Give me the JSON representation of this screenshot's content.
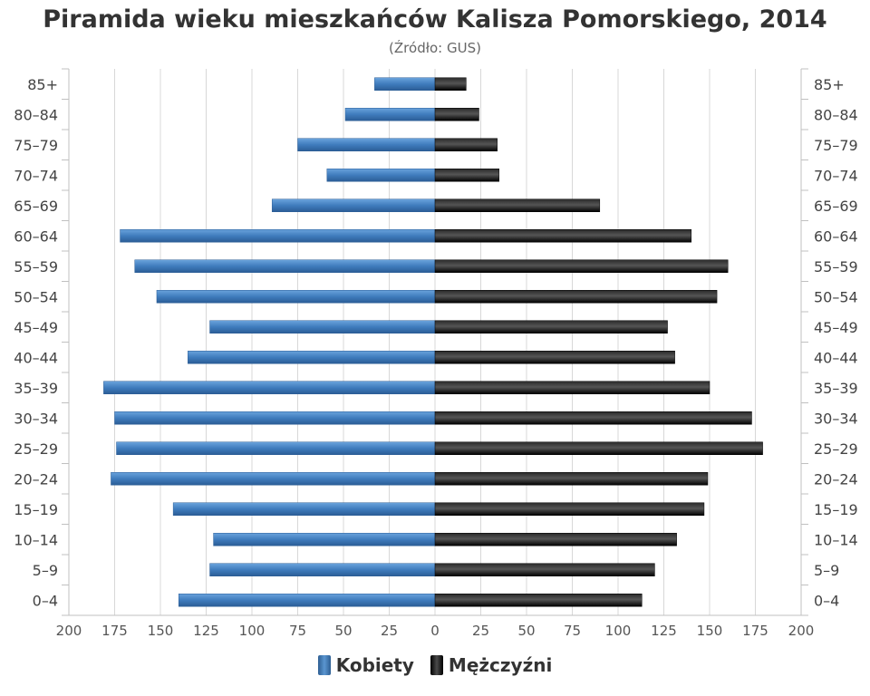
{
  "chart_data": {
    "type": "bar",
    "orientation": "horizontal-pyramid",
    "title": "Piramida wieku mieszkańców Kalisza Pomorskiego, 2014",
    "subtitle": "(Źródło: GUS)",
    "categories": [
      "85+",
      "80–84",
      "75–79",
      "70–74",
      "65–69",
      "60–64",
      "55–59",
      "50–54",
      "45–49",
      "40–44",
      "35–39",
      "30–34",
      "25–29",
      "20–24",
      "15–19",
      "10–14",
      "5–9",
      "0–4"
    ],
    "series": [
      {
        "name": "Kobiety",
        "color": "#4a86c5",
        "values": [
          33,
          49,
          75,
          59,
          89,
          172,
          164,
          152,
          123,
          135,
          181,
          175,
          174,
          177,
          143,
          121,
          123,
          140
        ]
      },
      {
        "name": "Mężczyźni",
        "color": "#1a1a1a",
        "values": [
          17,
          24,
          34,
          35,
          90,
          140,
          160,
          154,
          127,
          131,
          150,
          173,
          179,
          149,
          147,
          132,
          120,
          113
        ]
      }
    ],
    "xlim": [
      -200,
      200
    ],
    "xticks": [
      "200",
      "175",
      "150",
      "125",
      "100",
      "75",
      "50",
      "25",
      "0",
      "25",
      "50",
      "75",
      "100",
      "125",
      "150",
      "175",
      "200"
    ],
    "grid": true,
    "legend_position": "bottom"
  }
}
